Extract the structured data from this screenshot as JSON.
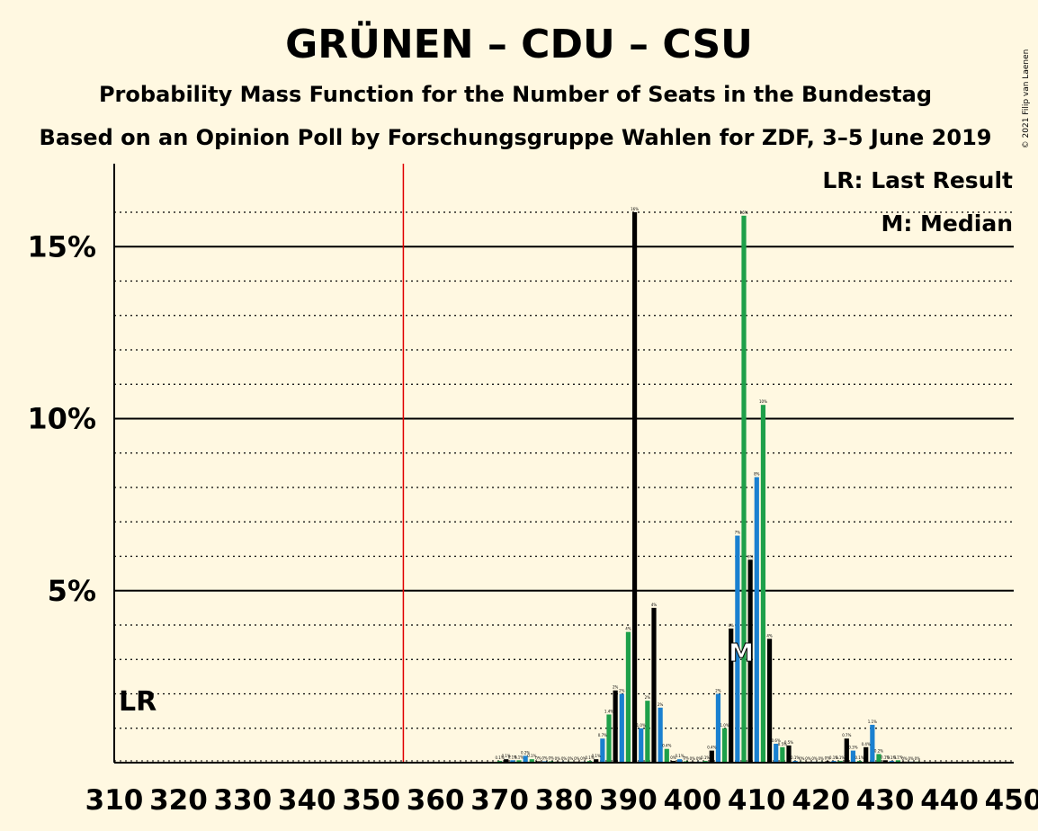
{
  "chart_data": {
    "type": "bar",
    "title": "GRÜNEN – CDU – CSU",
    "subtitle": "Probability Mass Function for the Number of Seats in the Bundestag",
    "subtitle2": "Based on an Opinion Poll by Forschungsgruppe Wahlen for ZDF, 3–5 June 2019",
    "copyright": "© 2021 Filip van Laenen",
    "legend": {
      "lr": "LR: Last Result",
      "median": "M: Median"
    },
    "lr_label": "LR",
    "median_label": "M",
    "last_result": 310,
    "median": 408,
    "majority": 355,
    "xlim": [
      310,
      450
    ],
    "ylim": [
      0,
      17.3
    ],
    "x_ticks": [
      310,
      320,
      330,
      340,
      350,
      360,
      370,
      380,
      390,
      400,
      410,
      420,
      430,
      440,
      450
    ],
    "x_tick_labels": [
      "310",
      "320",
      "330",
      "340",
      "350",
      "360",
      "370",
      "380",
      "390",
      "400",
      "410",
      "420",
      "430",
      "440",
      "450"
    ],
    "y_ticks": [
      5,
      10,
      15
    ],
    "y_tick_labels": [
      "5%",
      "10%",
      "15%"
    ],
    "y_minor": [
      1,
      2,
      3,
      4,
      6,
      7,
      8,
      9,
      11,
      12,
      13,
      14,
      16
    ],
    "grid": true,
    "legend_position": "top-right",
    "colors": {
      "black": "#000000",
      "blue": "#1a80d0",
      "green": "#1ea04a",
      "majority": "#e00000",
      "background": "#fff8e1"
    },
    "bars": [
      {
        "x": 370,
        "v": 0.05,
        "label": "0.1%",
        "c": "green"
      },
      {
        "x": 371,
        "v": 0.1,
        "label": "0.1%",
        "c": "black"
      },
      {
        "x": 372,
        "v": 0.07,
        "label": "0.1%",
        "c": "blue"
      },
      {
        "x": 373,
        "v": 0.07,
        "label": "0.1%",
        "c": "green"
      },
      {
        "x": 374,
        "v": 0.2,
        "label": "0.2%",
        "c": "blue"
      },
      {
        "x": 375,
        "v": 0.1,
        "label": "0.1%",
        "c": "green"
      },
      {
        "x": 376,
        "v": 0.04,
        "label": "0%",
        "c": "black"
      },
      {
        "x": 377,
        "v": 0.04,
        "label": "0%",
        "c": "blue"
      },
      {
        "x": 378,
        "v": 0.04,
        "label": "0%",
        "c": "green"
      },
      {
        "x": 379,
        "v": 0.03,
        "label": "0%",
        "c": "black"
      },
      {
        "x": 380,
        "v": 0.03,
        "label": "0%",
        "c": "blue"
      },
      {
        "x": 381,
        "v": 0.03,
        "label": "0%",
        "c": "green"
      },
      {
        "x": 382,
        "v": 0.03,
        "label": "0%",
        "c": "black"
      },
      {
        "x": 383,
        "v": 0.03,
        "label": "0%",
        "c": "blue"
      },
      {
        "x": 384,
        "v": 0.05,
        "label": "0.1%",
        "c": "green"
      },
      {
        "x": 385,
        "v": 0.1,
        "label": "0.1%",
        "c": "black"
      },
      {
        "x": 386,
        "v": 0.7,
        "label": "0.7%",
        "c": "blue"
      },
      {
        "x": 387,
        "v": 1.4,
        "label": "1.4%",
        "c": "green"
      },
      {
        "x": 388,
        "v": 2.1,
        "label": "2%",
        "c": "black"
      },
      {
        "x": 389,
        "v": 2.0,
        "label": "2%",
        "c": "blue"
      },
      {
        "x": 390,
        "v": 3.8,
        "label": "4%",
        "c": "green"
      },
      {
        "x": 391,
        "v": 16.0,
        "label": "16%",
        "c": "black"
      },
      {
        "x": 392,
        "v": 1.0,
        "label": "1.0%",
        "c": "blue"
      },
      {
        "x": 393,
        "v": 1.8,
        "label": "2%",
        "c": "green"
      },
      {
        "x": 394,
        "v": 4.5,
        "label": "4%",
        "c": "black"
      },
      {
        "x": 395,
        "v": 1.6,
        "label": "2%",
        "c": "blue"
      },
      {
        "x": 396,
        "v": 0.4,
        "label": "0.4%",
        "c": "green"
      },
      {
        "x": 397,
        "v": 0.05,
        "label": "0%",
        "c": "black"
      },
      {
        "x": 398,
        "v": 0.1,
        "label": "0.1%",
        "c": "blue"
      },
      {
        "x": 399,
        "v": 0.04,
        "label": "0%",
        "c": "green"
      },
      {
        "x": 400,
        "v": 0.03,
        "label": "0%",
        "c": "black"
      },
      {
        "x": 401,
        "v": 0.03,
        "label": "0%",
        "c": "blue"
      },
      {
        "x": 402,
        "v": 0.05,
        "label": "0.1%",
        "c": "green"
      },
      {
        "x": 403,
        "v": 0.35,
        "label": "0.4%",
        "c": "black"
      },
      {
        "x": 404,
        "v": 2.0,
        "label": "2%",
        "c": "blue"
      },
      {
        "x": 405,
        "v": 1.0,
        "label": "1.0%",
        "c": "green"
      },
      {
        "x": 406,
        "v": 3.9,
        "label": "4%",
        "c": "black"
      },
      {
        "x": 407,
        "v": 6.6,
        "label": "7%",
        "c": "blue"
      },
      {
        "x": 408,
        "v": 15.9,
        "label": "16%",
        "c": "green"
      },
      {
        "x": 409,
        "v": 5.9,
        "label": "6%",
        "c": "black"
      },
      {
        "x": 410,
        "v": 8.3,
        "label": "8%",
        "c": "blue"
      },
      {
        "x": 411,
        "v": 10.4,
        "label": "10%",
        "c": "green"
      },
      {
        "x": 412,
        "v": 3.6,
        "label": "4%",
        "c": "black"
      },
      {
        "x": 413,
        "v": 0.55,
        "label": "0.6%",
        "c": "blue"
      },
      {
        "x": 414,
        "v": 0.45,
        "label": "0.5%",
        "c": "green"
      },
      {
        "x": 415,
        "v": 0.5,
        "label": "0.5%",
        "c": "black"
      },
      {
        "x": 416,
        "v": 0.05,
        "label": "0.1%",
        "c": "blue"
      },
      {
        "x": 417,
        "v": 0.03,
        "label": "0%",
        "c": "green"
      },
      {
        "x": 418,
        "v": 0.03,
        "label": "0%",
        "c": "black"
      },
      {
        "x": 419,
        "v": 0.03,
        "label": "0%",
        "c": "blue"
      },
      {
        "x": 420,
        "v": 0.03,
        "label": "0%",
        "c": "green"
      },
      {
        "x": 421,
        "v": 0.04,
        "label": "0%",
        "c": "black"
      },
      {
        "x": 422,
        "v": 0.05,
        "label": "0.1%",
        "c": "blue"
      },
      {
        "x": 423,
        "v": 0.05,
        "label": "0.1%",
        "c": "green"
      },
      {
        "x": 424,
        "v": 0.7,
        "label": "0.7%",
        "c": "black"
      },
      {
        "x": 425,
        "v": 0.35,
        "label": "0.3%",
        "c": "blue"
      },
      {
        "x": 426,
        "v": 0.05,
        "label": "0.1%",
        "c": "green"
      },
      {
        "x": 427,
        "v": 0.45,
        "label": "0.4%",
        "c": "black"
      },
      {
        "x": 428,
        "v": 1.1,
        "label": "1.1%",
        "c": "blue"
      },
      {
        "x": 429,
        "v": 0.25,
        "label": "0.2%",
        "c": "green"
      },
      {
        "x": 430,
        "v": 0.07,
        "label": "0.1%",
        "c": "black"
      },
      {
        "x": 431,
        "v": 0.05,
        "label": "0.1%",
        "c": "blue"
      },
      {
        "x": 432,
        "v": 0.07,
        "label": "0.1%",
        "c": "green"
      },
      {
        "x": 433,
        "v": 0.03,
        "label": "0%",
        "c": "black"
      },
      {
        "x": 434,
        "v": 0.03,
        "label": "0%",
        "c": "blue"
      },
      {
        "x": 435,
        "v": 0.03,
        "label": "0%",
        "c": "green"
      }
    ]
  }
}
